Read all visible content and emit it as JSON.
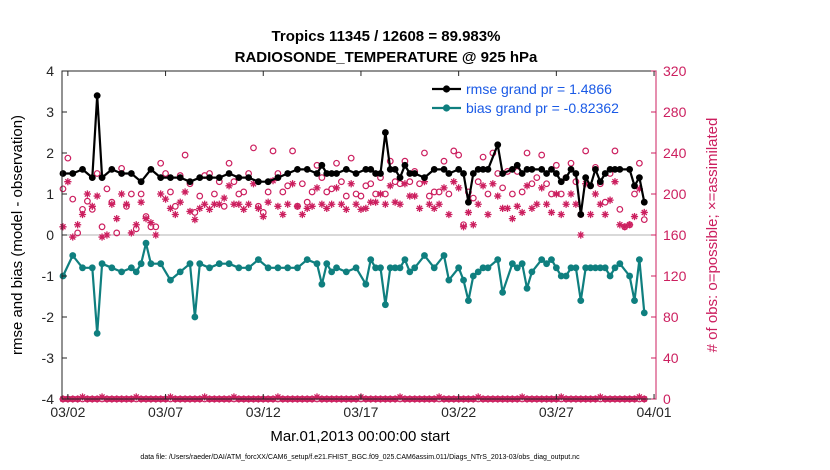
{
  "colors": {
    "rmse": "#000000",
    "bias": "#0f7f7f",
    "obs": "#cc1f5f",
    "zero_line": "#b3b3b3",
    "legend_text": "#1a5ae6"
  },
  "chart_data": {
    "type": "line",
    "title_line1": "Tropics 11345 / 12608 = 89.983%",
    "title_line2": "RADIOSONDE_TEMPERATURE @ 925 hPa",
    "xlabel": "Mar.01,2013 00:00:00 start",
    "ylabel_left": "rmse and bias (model - observation)",
    "ylabel_right": "# of obs: o=possible; ×=assimilated",
    "footnote": "data file: /Users/raeder/DAI/ATM_forcXX/CAM6_setup/f.e21.FHIST_BGC.f09_025.CAM6assim.011/Diags_NTrS_2013-03/obs_diag_output.nc",
    "xlim_days": [
      0.7,
      31.1
    ],
    "x_tick_days": [
      1,
      6,
      11,
      16,
      21,
      26,
      31
    ],
    "x_tick_labels": [
      "03/02",
      "03/07",
      "03/12",
      "03/17",
      "03/22",
      "03/27",
      "04/01"
    ],
    "ylim_left": [
      -4,
      4
    ],
    "y_ticks_left": [
      -4,
      -3,
      -2,
      -1,
      0,
      1,
      2,
      3,
      4
    ],
    "ylim_right": [
      0,
      320
    ],
    "y_ticks_right": [
      0,
      40,
      80,
      120,
      160,
      200,
      240,
      280,
      320
    ],
    "legend_position": "top-right",
    "legend": [
      {
        "label": "rmse grand pr = 1.4866",
        "series": "rmse"
      },
      {
        "label": "bias grand pr = -0.82362",
        "series": "bias"
      }
    ],
    "x_days": [
      0.75,
      1,
      1.25,
      1.5,
      1.75,
      2,
      2.25,
      2.5,
      2.75,
      3,
      3.25,
      3.5,
      3.75,
      4,
      4.25,
      4.5,
      4.75,
      5,
      5.25,
      5.5,
      5.75,
      6,
      6.25,
      6.5,
      6.75,
      7,
      7.25,
      7.5,
      7.75,
      8,
      8.25,
      8.5,
      8.75,
      9,
      9.25,
      9.5,
      9.75,
      10,
      10.25,
      10.5,
      10.75,
      11,
      11.25,
      11.5,
      11.75,
      12,
      12.25,
      12.5,
      12.75,
      13,
      13.25,
      13.5,
      13.75,
      14,
      14.25,
      14.5,
      14.75,
      15,
      15.25,
      15.5,
      15.75,
      16,
      16.25,
      16.5,
      16.75,
      17,
      17.25,
      17.5,
      17.75,
      18,
      18.25,
      18.5,
      18.75,
      19,
      19.25,
      19.5,
      19.75,
      20,
      20.25,
      20.5,
      20.75,
      21,
      21.25,
      21.5,
      21.75,
      22,
      22.25,
      22.5,
      22.75,
      23,
      23.25,
      23.5,
      23.75,
      24,
      24.25,
      24.5,
      24.75,
      25,
      25.25,
      25.5,
      25.75,
      26,
      26.25,
      26.5,
      26.75,
      27,
      27.25,
      27.5,
      27.75,
      28,
      28.25,
      28.5,
      28.75,
      29,
      29.25,
      29.5,
      29.75,
      30,
      30.25,
      30.5,
      30.75,
      31
    ],
    "series": [
      {
        "name": "rmse",
        "values": [
          1.5,
          null,
          1.5,
          null,
          1.6,
          null,
          1.4,
          3.4,
          1.4,
          null,
          1.6,
          null,
          1.5,
          null,
          1.5,
          null,
          1.3,
          null,
          1.6,
          null,
          1.4,
          null,
          1.4,
          null,
          1.4,
          null,
          1.3,
          null,
          1.4,
          null,
          1.4,
          null,
          1.4,
          null,
          1.5,
          null,
          1.4,
          null,
          1.4,
          null,
          1.3,
          null,
          1.3,
          null,
          1.4,
          null,
          1.5,
          null,
          1.6,
          null,
          1.6,
          null,
          1.5,
          1.7,
          1.5,
          1.5,
          1.5,
          null,
          1.6,
          null,
          1.5,
          null,
          1.6,
          1.6,
          1.5,
          1.5,
          2.5,
          1.6,
          1.6,
          1.4,
          1.7,
          1.5,
          1.5,
          null,
          1.4,
          null,
          1.6,
          null,
          1.6,
          1.5,
          null,
          1.6,
          1.5,
          0.8,
          1.5,
          1.6,
          1.6,
          1.6,
          null,
          2.2,
          1.5,
          null,
          1.6,
          1.7,
          1.5,
          1.6,
          1.6,
          null,
          1.6,
          1.5,
          1.6,
          1.5,
          1.3,
          1.4,
          1.6,
          1.5,
          0.5,
          1.4,
          1.2,
          1.6,
          1.3,
          1.5,
          1.6,
          1.6,
          1.6,
          null,
          1.6,
          1.2,
          1.4,
          0.8
        ]
      },
      {
        "name": "bias",
        "values": [
          -1.0,
          null,
          -0.5,
          null,
          -0.8,
          null,
          -0.8,
          -2.4,
          -0.7,
          null,
          -0.8,
          null,
          -0.9,
          null,
          -0.8,
          -0.9,
          -0.7,
          -0.2,
          -0.7,
          null,
          -0.7,
          null,
          -1.1,
          null,
          -0.9,
          null,
          -0.7,
          -2.0,
          -0.7,
          null,
          -0.8,
          null,
          -0.7,
          null,
          -0.7,
          null,
          -0.8,
          null,
          -0.8,
          null,
          -0.6,
          null,
          -0.8,
          null,
          -0.8,
          null,
          -0.8,
          null,
          -0.8,
          null,
          -0.6,
          null,
          -0.7,
          -1.2,
          -0.7,
          -0.9,
          -0.8,
          null,
          -0.9,
          null,
          -0.8,
          null,
          -1.2,
          -0.6,
          -0.8,
          -0.8,
          -1.7,
          -0.8,
          -0.8,
          -0.8,
          -0.6,
          -0.9,
          -0.8,
          null,
          -0.5,
          null,
          -0.8,
          null,
          -0.5,
          -1.1,
          null,
          -0.8,
          -1.1,
          -1.6,
          -1.0,
          -0.9,
          -0.8,
          -0.8,
          null,
          -0.6,
          -1.4,
          null,
          -0.7,
          -0.8,
          -0.7,
          -1.3,
          -0.9,
          null,
          -0.6,
          -0.7,
          -0.6,
          -0.8,
          -1.0,
          -1.0,
          -0.8,
          -0.8,
          -1.6,
          -0.8,
          -0.8,
          -0.8,
          -0.8,
          -0.8,
          -1.0,
          -0.8,
          -0.7,
          null,
          -1.0,
          -1.6,
          -0.6,
          -1.9
        ]
      },
      {
        "name": "obs_possible",
        "values": [
          205,
          235,
          195,
          162,
          185,
          193,
          185,
          220,
          168,
          205,
          192,
          162,
          225,
          188,
          200,
          166,
          200,
          178,
          168,
          168,
          230,
          220,
          202,
          188,
          218,
          238,
          210,
          182,
          198,
          218,
          220,
          200,
          212,
          188,
          230,
          212,
          200,
          202,
          220,
          245,
          188,
          182,
          202,
          242,
          220,
          202,
          208,
          242,
          188,
          210,
          192,
          202,
          228,
          216,
          202,
          205,
          230,
          212,
          198,
          235,
          200,
          198,
          208,
          210,
          200,
          216,
          200,
          232,
          212,
          210,
          232,
          212,
          222,
          210,
          240,
          198,
          202,
          202,
          232,
          200,
          242,
          238,
          170,
          202,
          196,
          212,
          236,
          200,
          240,
          220,
          206,
          222,
          200,
          222,
          202,
          240,
          210,
          216,
          238,
          210,
          200,
          228,
          200,
          216,
          230,
          212,
          180,
          242,
          208,
          226,
          210,
          192,
          220,
          242,
          185,
          168,
          170,
          200,
          230,
          175
        ]
      },
      {
        "name": "obs_assimilated",
        "values": [
          168,
          212,
          158,
          170,
          180,
          200,
          188,
          198,
          158,
          160,
          190,
          176,
          200,
          190,
          162,
          170,
          192,
          176,
          172,
          160,
          200,
          195,
          186,
          180,
          192,
          202,
          183,
          175,
          186,
          190,
          185,
          190,
          190,
          196,
          208,
          190,
          190,
          185,
          190,
          210,
          186,
          178,
          192,
          213,
          188,
          180,
          190,
          210,
          188,
          180,
          186,
          188,
          206,
          190,
          186,
          190,
          206,
          190,
          185,
          210,
          190,
          185,
          186,
          192,
          192,
          200,
          190,
          208,
          192,
          190,
          210,
          198,
          198,
          186,
          212,
          190,
          186,
          190,
          206,
          180,
          212,
          206,
          168,
          182,
          170,
          190,
          208,
          180,
          210,
          198,
          186,
          186,
          176,
          188,
          182,
          208,
          186,
          190,
          206,
          190,
          182,
          200,
          180,
          190,
          200,
          190,
          160,
          210,
          180,
          200,
          190,
          180,
          194,
          212,
          170,
          168,
          170,
          178,
          205,
          182
        ]
      },
      {
        "name": "obs_possible_bottom",
        "values": [
          0,
          0,
          0,
          0,
          0,
          0,
          0,
          0,
          0,
          0,
          0,
          0,
          0,
          0,
          0,
          0,
          0,
          0,
          0,
          0,
          0,
          0,
          0,
          0,
          0,
          0,
          0,
          0,
          0,
          0,
          0,
          0,
          0,
          0,
          0,
          0,
          0,
          0,
          0,
          0,
          0,
          0,
          0,
          0,
          0,
          0,
          0,
          0,
          0,
          0,
          0,
          0,
          0,
          0,
          0,
          0,
          0,
          0,
          0,
          0,
          0,
          0,
          0,
          0,
          0,
          0,
          0,
          0,
          0,
          0,
          0,
          0,
          0,
          0,
          0,
          0,
          0,
          0,
          0,
          0,
          0,
          0,
          0,
          0,
          0,
          0,
          0,
          0,
          0,
          0,
          0,
          0,
          0,
          0,
          0,
          0,
          0,
          0,
          0,
          0,
          0,
          0,
          0,
          0,
          0,
          0,
          0,
          0,
          0,
          0,
          0,
          0,
          0,
          0,
          0,
          0,
          0,
          0,
          0,
          0
        ]
      },
      {
        "name": "obs_assimilated_bottom",
        "values": [
          0,
          0,
          0,
          0,
          2,
          0,
          0,
          0,
          2,
          0,
          0,
          0,
          0,
          0,
          0,
          2,
          0,
          0,
          0,
          0,
          0,
          0,
          2,
          0,
          0,
          0,
          0,
          0,
          0,
          2,
          0,
          0,
          0,
          0,
          0,
          2,
          0,
          0,
          0,
          0,
          0,
          0,
          0,
          0,
          2,
          0,
          0,
          0,
          0,
          0,
          0,
          0,
          2,
          0,
          0,
          0,
          0,
          0,
          0,
          0,
          0,
          2,
          0,
          0,
          0,
          0,
          0,
          0,
          0,
          2,
          0,
          0,
          0,
          0,
          0,
          0,
          0,
          2,
          0,
          0,
          0,
          0,
          0,
          0,
          0,
          2,
          0,
          0,
          0,
          0,
          0,
          0,
          0,
          0,
          2,
          0,
          0,
          0,
          0,
          0,
          0,
          0,
          2,
          0,
          0,
          0,
          0,
          0,
          0,
          0,
          2,
          0,
          0,
          0,
          0,
          0,
          0,
          0,
          2,
          0
        ]
      }
    ]
  }
}
